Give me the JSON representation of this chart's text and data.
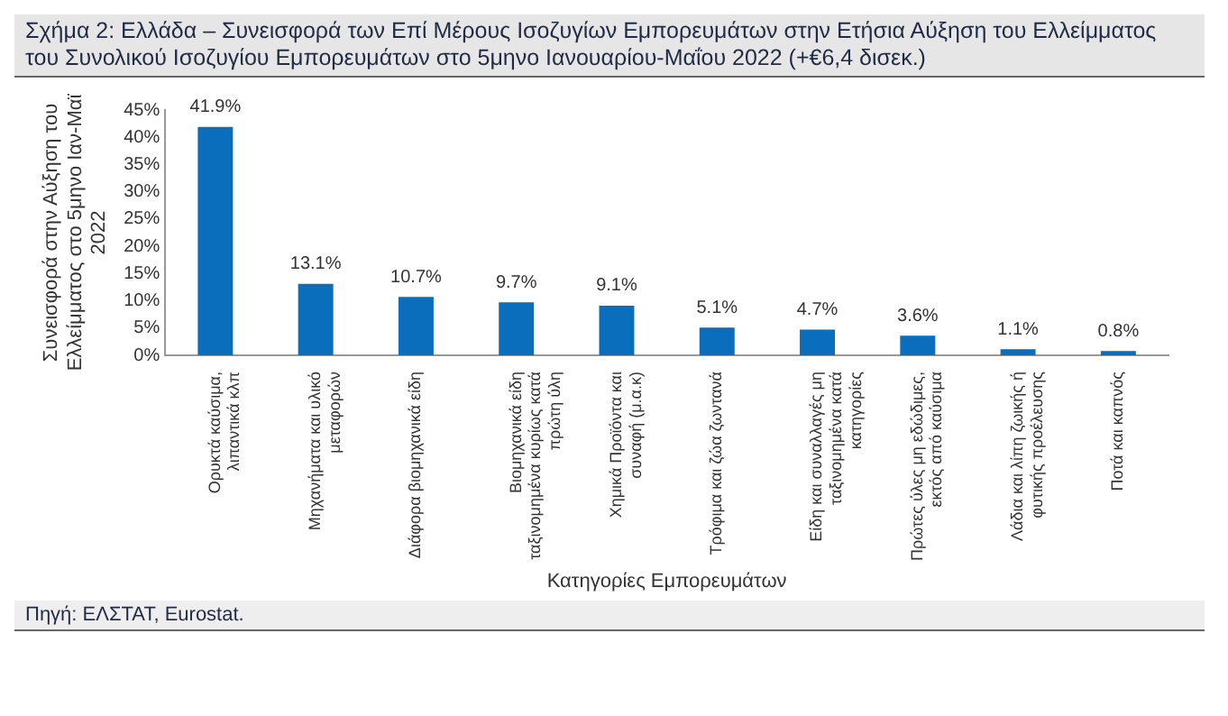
{
  "chart_data": {
    "type": "bar",
    "title": "Σχήμα 2: Ελλάδα – Συνεισφορά των Επί Μέρους Ισοζυγίων Εμπορευμάτων στην Ετήσια Αύξηση του Ελλείμματος του Συνολικού Ισοζυγίου Εμπορευμάτων στο 5μηνο Ιανουαρίου-Μαΐου 2022 (+€6,4 δισεκ.)",
    "xlabel": "Κατηγορίες Εμπορευμάτων",
    "ylabel": "Συνεισφορά στην Αύξηση του Ελλείμματος στο 5μηνο Ιαν-Μαϊ 2022",
    "categories": [
      "Ορυκτά καύσιμα, λιπαντικά κλπ",
      "Μηχανήματα και υλικό μεταφορών",
      "Διάφορα βιομηχανικά είδη",
      "Βιομηχανικά είδη ταξινομημένα κυρίως κατά πρώτη ύλη",
      "Χημικά Προϊόντα και συναφή (μ.α.κ)",
      "Τρόφιμα και ζώα ζωντανά",
      "Είδη και συναλλαγές μη ταξινομημένα κατά κατηγορίες",
      "Πρώτες ύλες μη εδώδιμες, εκτός από καύσιμα",
      "Λάδια και λίπη ζωικής ή φυτικής προέλευσης",
      "Ποτά και καπνός"
    ],
    "values": [
      41.9,
      13.1,
      10.7,
      9.7,
      9.1,
      5.1,
      4.7,
      3.6,
      1.1,
      0.8
    ],
    "value_labels": [
      "41.9%",
      "13.1%",
      "10.7%",
      "9.7%",
      "9.1%",
      "5.1%",
      "4.7%",
      "3.6%",
      "1.1%",
      "0.8%"
    ],
    "color": "#0a6ebd",
    "ylim": [
      0,
      45
    ],
    "yticks": [
      {
        "value": 0,
        "label": "0%"
      },
      {
        "value": 5,
        "label": "5%"
      },
      {
        "value": 10,
        "label": "10%"
      },
      {
        "value": 15,
        "label": "15%"
      },
      {
        "value": 20,
        "label": "20%"
      },
      {
        "value": 25,
        "label": "25%"
      },
      {
        "value": 30,
        "label": "30%"
      },
      {
        "value": 35,
        "label": "35%"
      },
      {
        "value": 40,
        "label": "40%"
      },
      {
        "value": 45,
        "label": "45%"
      }
    ],
    "grid": false,
    "legend": false,
    "annotations": [
      "Πηγή: ΕΛΣΤΑΤ, Eurostat."
    ]
  }
}
